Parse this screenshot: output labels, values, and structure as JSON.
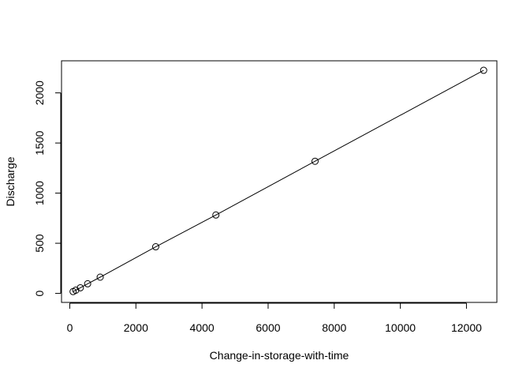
{
  "chart_data": {
    "type": "scatter",
    "title": "",
    "xlabel": "Change-in-storage-with-time",
    "ylabel": "Discharge",
    "xlim": [
      -250,
      12920
    ],
    "ylim": [
      -90,
      2320
    ],
    "x_ticks": [
      0,
      2000,
      4000,
      6000,
      8000,
      10000,
      12000
    ],
    "y_ticks": [
      0,
      500,
      1000,
      1500,
      2000
    ],
    "grid": false,
    "legend": "none",
    "line_through_points": true,
    "series": [
      {
        "x": [
          100,
          180,
          320,
          540,
          920,
          2600,
          4420,
          7420,
          12520
        ],
        "y": [
          18,
          32,
          56,
          96,
          162,
          465,
          782,
          1318,
          2225
        ]
      }
    ]
  }
}
